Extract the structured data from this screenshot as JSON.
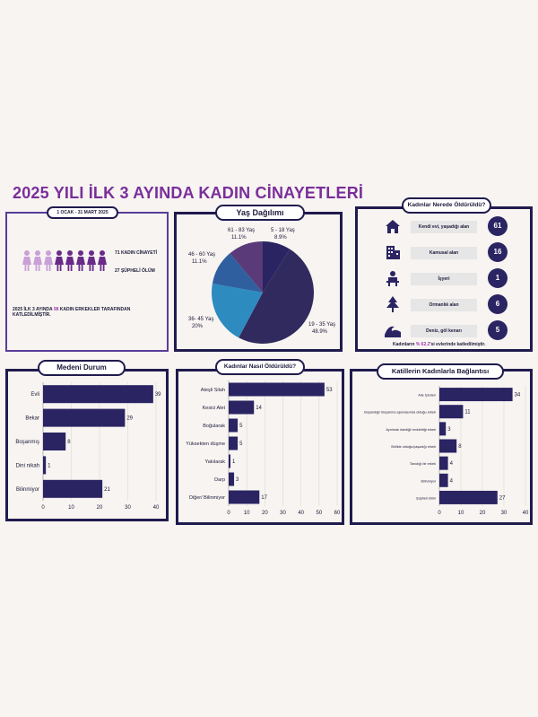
{
  "title": "2025 YILI İLK 3 AYINDA KADIN CİNAYETLERİ",
  "summary": {
    "date_range": "1 OCAK - 31 MART  2025",
    "murders_label": "71 KADIN CİNAYETİ",
    "suspicious_label": "27 ŞÜPHELİ ÖLÜM",
    "footer_prefix": "2025 İLK 3 AYINDA ",
    "footer_number": "98",
    "footer_suffix": " KADIN ERKEKLER TARAFINDAN KATLEDİLMİŞTİR.",
    "colors": {
      "light": "#c9a0d8",
      "dark": "#6a2a8a",
      "accent": "#a03bb0"
    }
  },
  "locations": {
    "title": "Kadınlar Nerede Öldürüldü?",
    "items": [
      {
        "label": "Kendi evi, yaşadığı alan",
        "value": "61",
        "icon": "house-icon"
      },
      {
        "label": "Kamusal alan",
        "value": "16",
        "icon": "building-icon"
      },
      {
        "label": "İşyeri",
        "value": "1",
        "icon": "office-worker-icon"
      },
      {
        "label": "Ormanlık alan",
        "value": "6",
        "icon": "tree-icon"
      },
      {
        "label": "Deniz, göl kenarı",
        "value": "5",
        "icon": "wave-icon"
      }
    ],
    "footer_prefix": "Kadınların ",
    "footer_pct": "% 62.2",
    "footer_suffix": "'si evlerinde katledilmiştir."
  },
  "chart_data": [
    {
      "type": "pie",
      "title": "Yaş Dağılımı",
      "slices": [
        {
          "label": "5 - 18 Yaş",
          "pct_label": "8.9%",
          "value": 8.9,
          "color": "#2a2463"
        },
        {
          "label": "19 - 35 Yaş",
          "pct_label": "48.9%",
          "value": 48.9,
          "color": "#312a5e"
        },
        {
          "label": "36- 45 Yaş",
          "pct_label": "20%",
          "value": 20,
          "color": "#2e8bc0"
        },
        {
          "label": "46 - 60 Yaş",
          "pct_label": "11.1%",
          "value": 11.1,
          "color": "#2f5f9e"
        },
        {
          "label": "61 - 83 Yaş",
          "pct_label": "11.1%",
          "value": 11.1,
          "color": "#5a3a78"
        }
      ]
    },
    {
      "type": "bar",
      "orientation": "horizontal",
      "title": "Medeni Durum",
      "categories": [
        "Evli",
        "Bekar",
        "Boşanmış",
        "Dini nikah",
        "Bilinmiyor"
      ],
      "values": [
        39,
        29,
        8,
        1,
        21
      ],
      "xlim": [
        0,
        40
      ],
      "ticks": [
        0,
        10,
        20,
        30,
        40
      ],
      "color": "#2a2463"
    },
    {
      "type": "bar",
      "orientation": "horizontal",
      "title": "Kadınlar Nasıl Öldürüldü?",
      "categories": [
        "Ateşli Silah",
        "Kesici Alet",
        "Boğularak",
        "Yüksekten düşme",
        "Yakılarak",
        "Darp",
        "Diğer/ Bilinmiyor"
      ],
      "values": [
        53,
        14,
        5,
        5,
        1,
        3,
        17
      ],
      "xlim": [
        0,
        60
      ],
      "ticks": [
        0,
        10,
        20,
        30,
        40,
        50,
        60
      ],
      "color": "#2a2463"
    },
    {
      "type": "bar",
      "orientation": "horizontal",
      "title": "Katillerin Kadınlarla Bağlantısı",
      "categories": [
        "Aile İçinden",
        "Boşandığı/ Boşanma aşamasında olduğu erkek",
        "Ayrılmak istediği/ reddettiği erkek",
        "Birlikte olduğu/yaşadığı erkek",
        "Tanıdığı bir erkek",
        "Bilinmiyor",
        "Şüpheli ölüm"
      ],
      "values": [
        34,
        11,
        3,
        8,
        4,
        4,
        27
      ],
      "xlim": [
        0,
        40
      ],
      "ticks": [
        0,
        10,
        20,
        30,
        40
      ],
      "color": "#2a2463"
    }
  ]
}
